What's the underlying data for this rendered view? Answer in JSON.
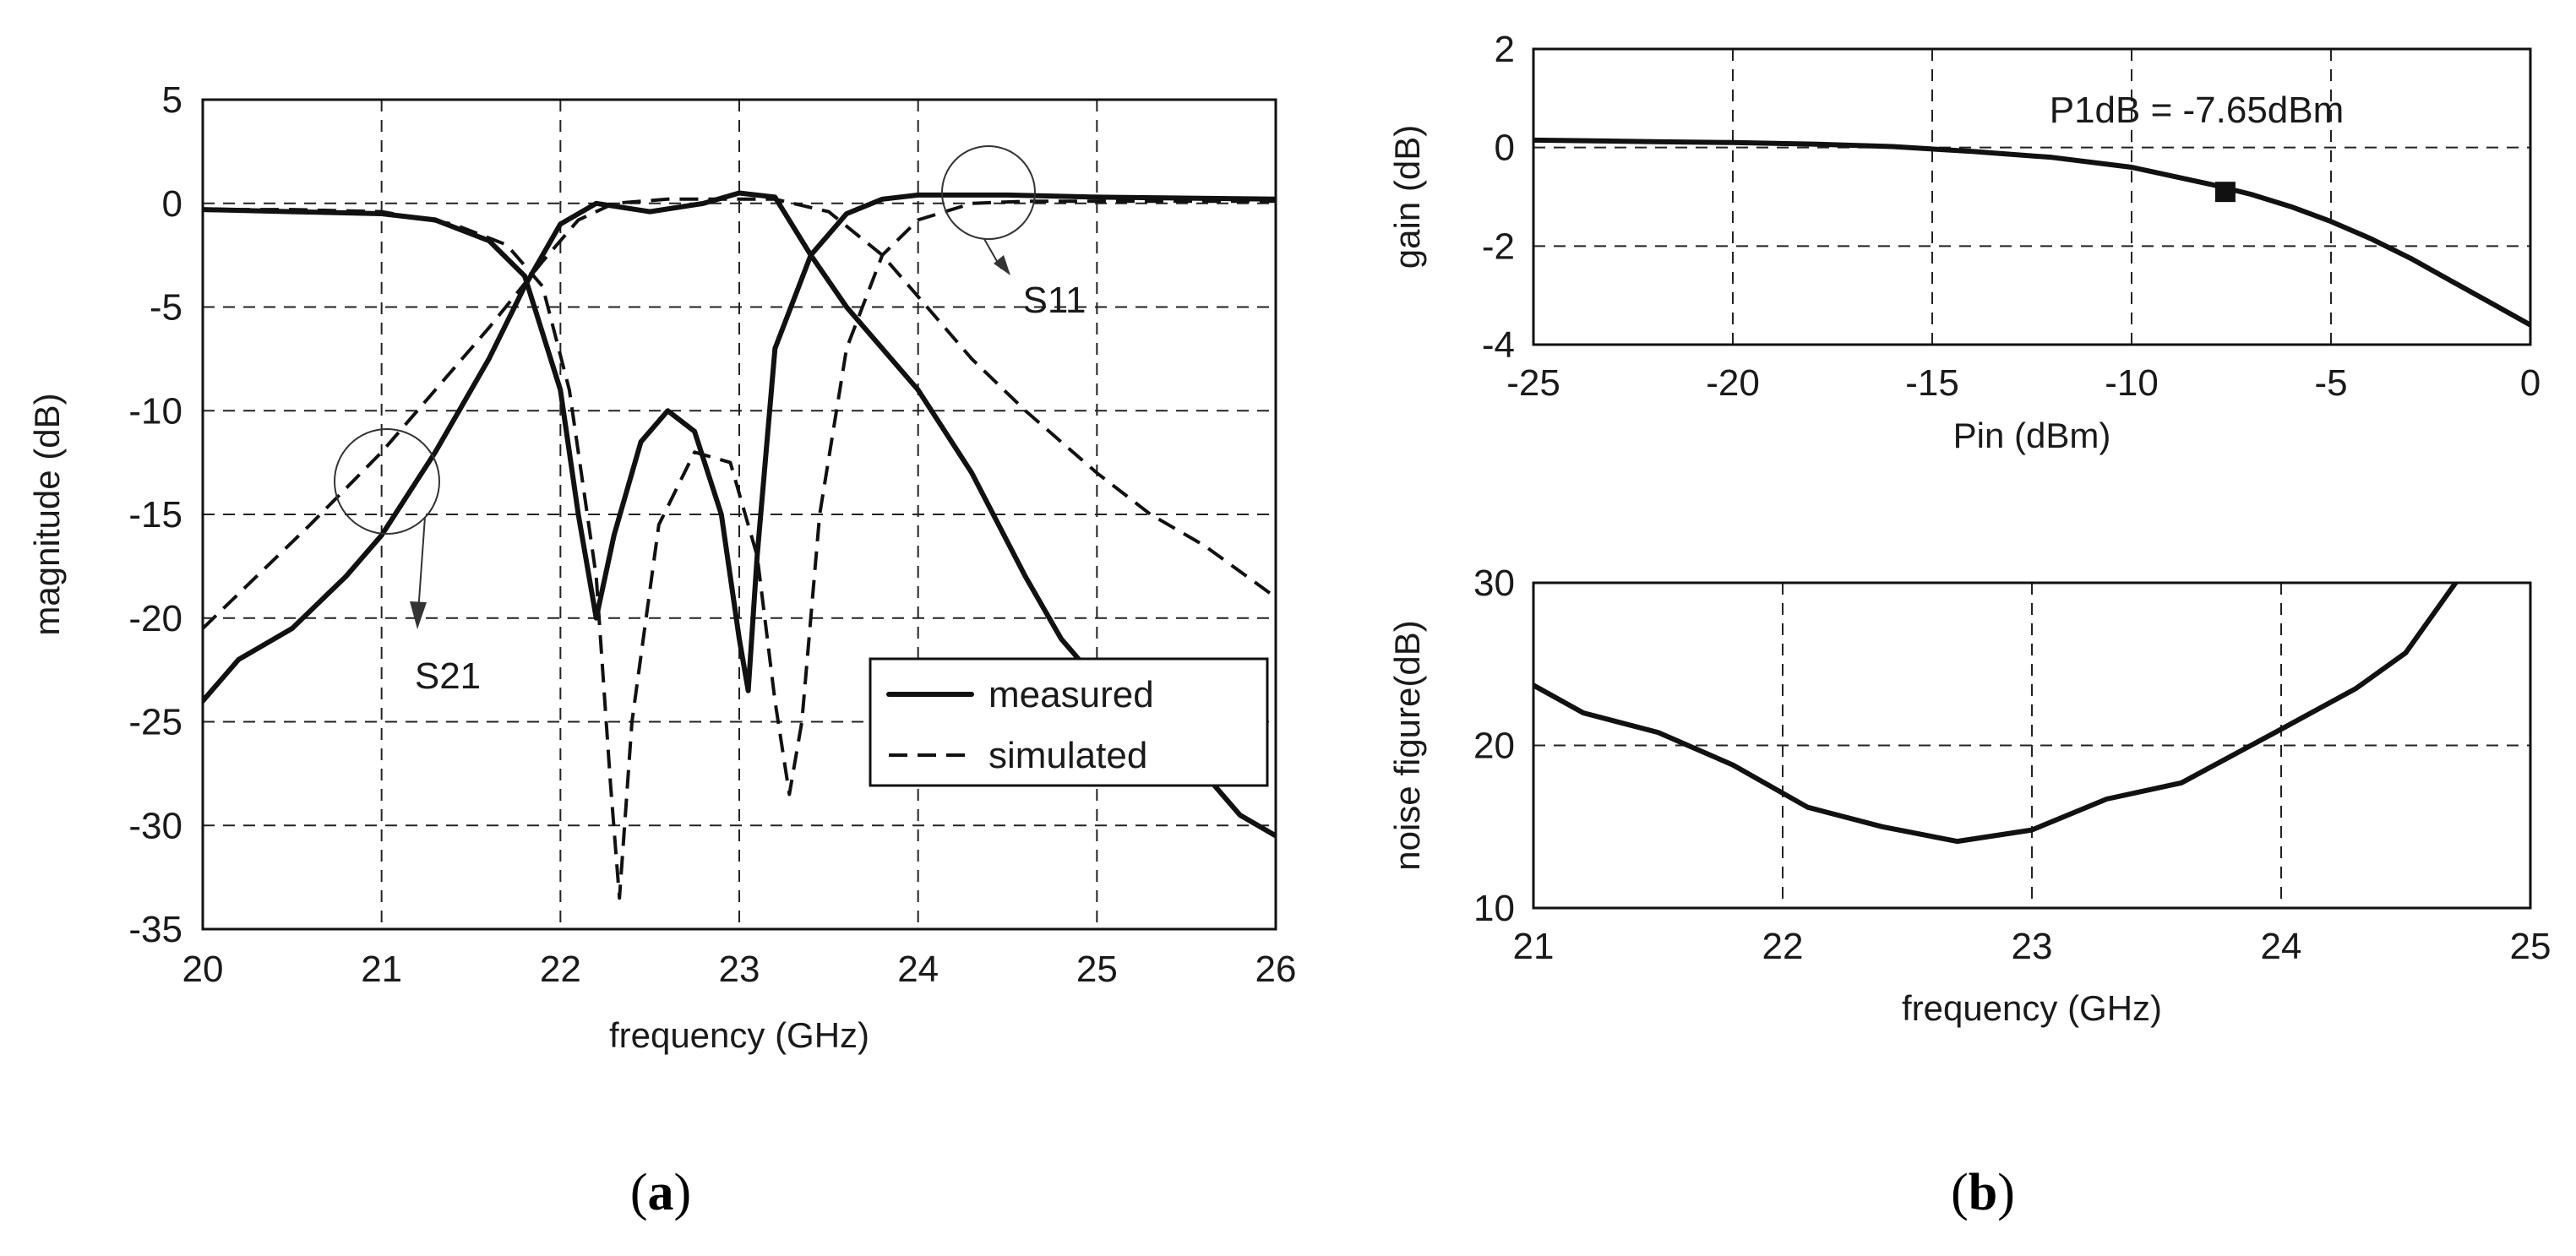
{
  "chart_data": [
    {
      "id": "a",
      "type": "line",
      "panel_label": "a",
      "xlabel": "frequency (GHz)",
      "ylabel": "magnitude (dB)",
      "xlim": [
        20,
        26
      ],
      "ylim": [
        -35,
        5
      ],
      "xticks": [
        20,
        21,
        22,
        23,
        24,
        25,
        26
      ],
      "yticks": [
        5,
        0,
        -5,
        -10,
        -15,
        -20,
        -25,
        -30,
        -35
      ],
      "grid": true,
      "legend": {
        "position": "bottom-right",
        "entries": [
          {
            "label": "measured",
            "style": "solid"
          },
          {
            "label": "simulated",
            "style": "dashed"
          }
        ]
      },
      "annotations": [
        {
          "text": "S11",
          "x": 24.4,
          "y": 0.3
        },
        {
          "text": "S21",
          "x": 21.1,
          "y": -14
        }
      ],
      "series": [
        {
          "name": "S21 measured",
          "style": "solid",
          "x": [
            20,
            20.2,
            20.5,
            20.8,
            21,
            21.3,
            21.6,
            21.8,
            22,
            22.2,
            22.5,
            22.8,
            23,
            23.2,
            23.4,
            23.6,
            23.8,
            24,
            24.3,
            24.6,
            24.8,
            25,
            25.3,
            25.6,
            25.8,
            26
          ],
          "y": [
            -24,
            -22,
            -20.5,
            -18,
            -16,
            -12,
            -7.5,
            -4,
            -1,
            0,
            -0.4,
            0,
            0.5,
            0.3,
            -2.5,
            -5,
            -7,
            -9,
            -13,
            -18,
            -21,
            -23,
            -25,
            -27.5,
            -29.5,
            -30.5
          ]
        },
        {
          "name": "S11 measured",
          "style": "solid",
          "x": [
            20,
            20.5,
            21,
            21.3,
            21.6,
            21.8,
            22,
            22.1,
            22.2,
            22.3,
            22.45,
            22.6,
            22.75,
            22.9,
            23,
            23.05,
            23.1,
            23.2,
            23.4,
            23.6,
            23.8,
            24,
            24.5,
            25,
            26
          ],
          "y": [
            -0.3,
            -0.4,
            -0.5,
            -0.8,
            -1.8,
            -3.5,
            -9,
            -15,
            -20,
            -16,
            -11.5,
            -10,
            -11,
            -15,
            -21,
            -23.5,
            -17,
            -7,
            -2.5,
            -0.5,
            0.2,
            0.4,
            0.4,
            0.3,
            0.2
          ]
        },
        {
          "name": "S21 simulated",
          "style": "dashed",
          "x": [
            20,
            20.3,
            20.6,
            21,
            21.3,
            21.6,
            21.9,
            22.1,
            22.3,
            22.6,
            22.9,
            23.2,
            23.5,
            23.8,
            24,
            24.3,
            24.6,
            25,
            25.3,
            25.6,
            26
          ],
          "y": [
            -20.5,
            -18,
            -15.5,
            -12,
            -9,
            -6,
            -2.8,
            -0.8,
            0,
            0.2,
            0.2,
            0.2,
            -0.4,
            -2.5,
            -4.5,
            -7.5,
            -10,
            -13,
            -15,
            -16.5,
            -19
          ]
        },
        {
          "name": "S11 simulated",
          "style": "dashed",
          "x": [
            20,
            20.5,
            21,
            21.4,
            21.7,
            21.9,
            22.05,
            22.2,
            22.28,
            22.33,
            22.4,
            22.55,
            22.75,
            22.95,
            23.1,
            23.2,
            23.28,
            23.35,
            23.45,
            23.6,
            23.8,
            24,
            24.3,
            24.6,
            25,
            26
          ],
          "y": [
            -0.3,
            -0.3,
            -0.4,
            -1,
            -2,
            -4,
            -9,
            -18,
            -28,
            -33.5,
            -25,
            -15.5,
            -12,
            -12.5,
            -17,
            -24,
            -28.5,
            -25,
            -15,
            -7,
            -2.5,
            -0.8,
            0,
            0.1,
            0.1,
            0.1
          ]
        }
      ]
    },
    {
      "id": "b1",
      "type": "line",
      "panel_label": "b",
      "xlabel": "Pin (dBm)",
      "ylabel": "gain (dB)",
      "xlim": [
        -25,
        0
      ],
      "ylim": [
        -4,
        2
      ],
      "xticks": [
        -25,
        -20,
        -15,
        -10,
        -5,
        0
      ],
      "yticks": [
        2,
        0,
        -2,
        -4
      ],
      "grid": true,
      "annotations": [
        {
          "text": "P1dB = -7.65dBm"
        }
      ],
      "marker": {
        "x": -7.65,
        "y": -0.9
      },
      "series": [
        {
          "name": "gain",
          "style": "solid",
          "x": [
            -25,
            -22,
            -20,
            -18,
            -16,
            -14,
            -12,
            -10,
            -8,
            -7,
            -6,
            -5,
            -4,
            -3,
            -2,
            -1,
            0
          ],
          "y": [
            0.15,
            0.12,
            0.1,
            0.07,
            0.02,
            -0.08,
            -0.2,
            -0.4,
            -0.75,
            -0.95,
            -1.2,
            -1.5,
            -1.85,
            -2.25,
            -2.7,
            -3.15,
            -3.6
          ]
        }
      ]
    },
    {
      "id": "b2",
      "type": "line",
      "xlabel": "frequency (GHz)",
      "ylabel": "noise figure(dB)",
      "xlim": [
        21,
        25
      ],
      "ylim": [
        10,
        30
      ],
      "xticks": [
        21,
        22,
        23,
        24,
        25
      ],
      "yticks": [
        30,
        20,
        10
      ],
      "grid": true,
      "series": [
        {
          "name": "noise figure",
          "style": "solid",
          "x": [
            21,
            21.2,
            21.5,
            21.8,
            22.1,
            22.4,
            22.7,
            23,
            23.3,
            23.6,
            24,
            24.3,
            24.5,
            24.7
          ],
          "y": [
            23.7,
            22,
            20.8,
            18.8,
            16.2,
            15,
            14.1,
            14.8,
            16.7,
            17.7,
            21,
            23.5,
            25.7,
            30
          ]
        }
      ]
    }
  ]
}
